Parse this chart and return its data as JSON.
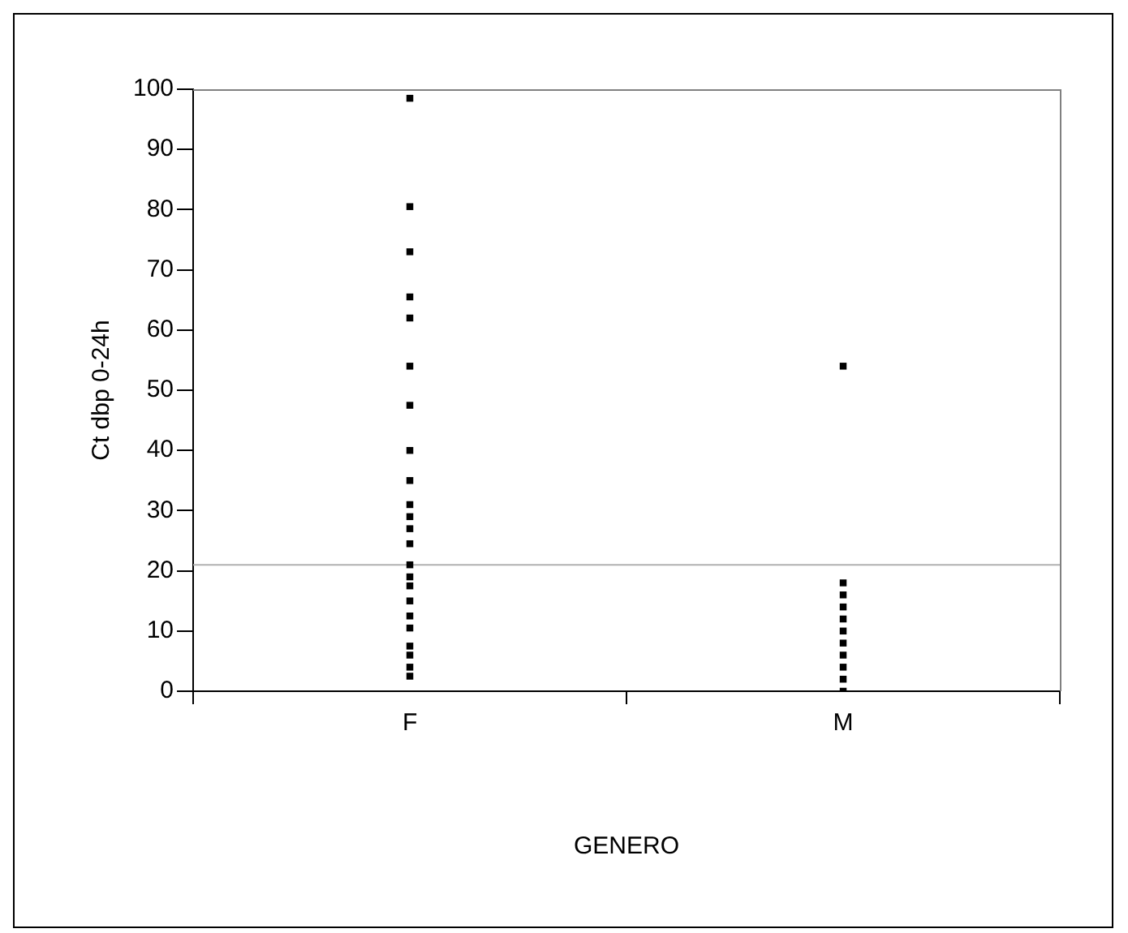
{
  "chart_data": {
    "type": "scatter",
    "xlabel": "GENERO",
    "ylabel": "Ct dbp 0-24h",
    "categories": [
      "F",
      "M"
    ],
    "series": [
      {
        "color": "#000000",
        "x": [
          "F",
          "F",
          "F",
          "F",
          "F",
          "F",
          "F",
          "F",
          "F",
          "F",
          "F",
          "F",
          "F",
          "F",
          "F",
          "F",
          "F",
          "F",
          "F",
          "F",
          "F",
          "F",
          "F"
        ],
        "values": [
          98.5,
          80.5,
          73,
          65.5,
          62,
          54,
          47.5,
          40,
          35,
          31,
          29,
          27,
          24.5,
          21,
          19,
          17.5,
          15,
          12.5,
          10.5,
          7.5,
          6,
          4,
          2.5
        ]
      },
      {
        "color": "#000000",
        "x": [
          "M",
          "M",
          "M",
          "M",
          "M",
          "M",
          "M",
          "M",
          "M",
          "M",
          "M"
        ],
        "values": [
          54,
          18,
          16,
          14,
          12,
          10,
          8,
          6,
          4,
          2,
          0
        ]
      }
    ],
    "ylim": [
      0,
      100
    ],
    "yticks": [
      0,
      10,
      20,
      30,
      40,
      50,
      60,
      70,
      80,
      90,
      100
    ],
    "grid": false,
    "legend": false,
    "marker": "square",
    "ref_lines": [
      {
        "axis": "y",
        "value": 21,
        "color": "#b0b0b0"
      }
    ]
  }
}
